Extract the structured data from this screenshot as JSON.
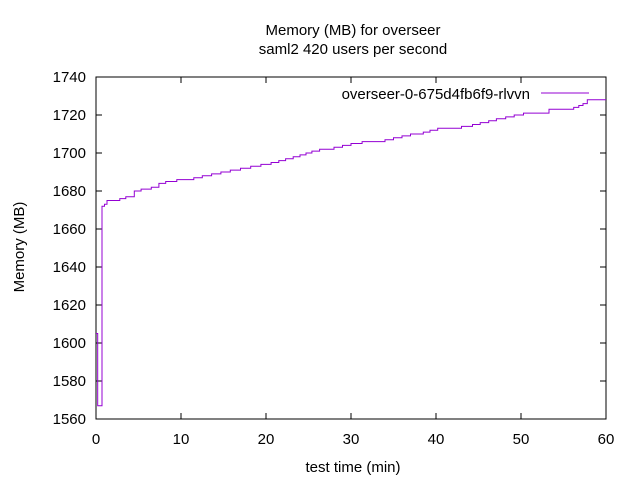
{
  "chart_data": {
    "type": "line",
    "title": "Memory (MB) for overseer",
    "subtitle": "saml2 420 users per second",
    "xlabel": "test time (min)",
    "ylabel": "Memory (MB)",
    "xlim": [
      0,
      60
    ],
    "ylim": [
      1560,
      1740
    ],
    "xticks": [
      0,
      10,
      20,
      30,
      40,
      50,
      60
    ],
    "yticks": [
      1560,
      1580,
      1600,
      1620,
      1640,
      1660,
      1680,
      1700,
      1720,
      1740
    ],
    "grid": false,
    "legend_position": "top-right",
    "series": [
      {
        "name": "overseer-0-675d4fb6f9-rlvvn",
        "color": "#9400d3",
        "step": true,
        "x": [
          0,
          0.2,
          0.5,
          0.7,
          1.0,
          1.3,
          2.0,
          2.8,
          3.5,
          4.5,
          5.3,
          6.5,
          7.4,
          8.2,
          9.5,
          11.5,
          12.5,
          13.6,
          14.7,
          15.8,
          17.0,
          18.2,
          19.4,
          20.6,
          21.5,
          22.3,
          23.2,
          24.0,
          24.7,
          25.4,
          26.3,
          27.1,
          28.0,
          29.0,
          30.0,
          31.3,
          32.8,
          34.0,
          35.0,
          36.0,
          37.0,
          38.5,
          39.3,
          40.2,
          41.3,
          43.0,
          44.3,
          45.2,
          46.2,
          47.1,
          48.2,
          49.2,
          50.3,
          52.2,
          53.3,
          55.1,
          56.2,
          56.8,
          57.3,
          57.8,
          60.0
        ],
        "y": [
          1605,
          1567,
          1567,
          1672,
          1673,
          1675,
          1675,
          1676,
          1677,
          1680,
          1681,
          1682,
          1684,
          1685,
          1686,
          1687,
          1688,
          1689,
          1690,
          1691,
          1692,
          1693,
          1694,
          1695,
          1696,
          1697,
          1698,
          1699,
          1700,
          1701,
          1702,
          1702,
          1703,
          1704,
          1705,
          1706,
          1706,
          1707,
          1708,
          1709,
          1710,
          1711,
          1712,
          1713,
          1713,
          1714,
          1715,
          1716,
          1717,
          1718,
          1719,
          1720,
          1721,
          1721,
          1723,
          1723,
          1724,
          1725,
          1726,
          1728,
          1728
        ]
      }
    ]
  }
}
